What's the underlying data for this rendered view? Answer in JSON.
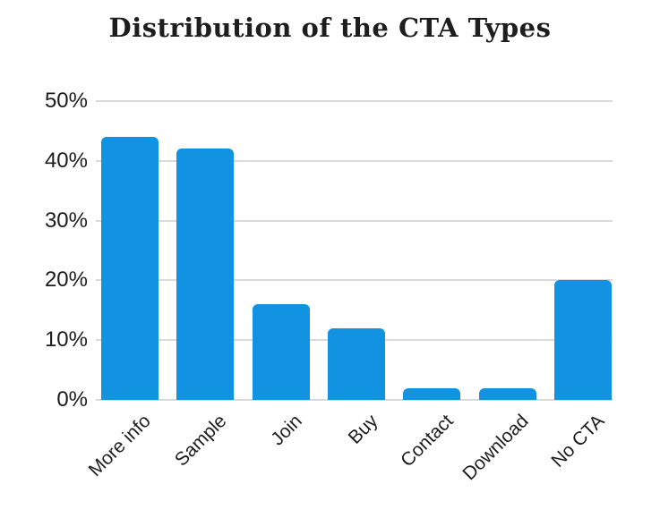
{
  "colors": {
    "background": "#ffffff",
    "bar": "#1193e2",
    "gridline": "#dadada",
    "text": "#1c1c1c",
    "title_text": "#1e1e1e"
  },
  "chart_data": {
    "type": "bar",
    "title": "Distribution of the CTA Types",
    "categories": [
      "More info",
      "Sample",
      "Join",
      "Buy",
      "Contact",
      "Download",
      "No CTA"
    ],
    "values": [
      44,
      42,
      16,
      12,
      2,
      2,
      20
    ],
    "xlabel": "",
    "ylabel": "",
    "ylim": [
      0,
      50
    ],
    "yticks": [
      0,
      10,
      20,
      30,
      40,
      50
    ],
    "ytick_suffix": "%",
    "grid": true,
    "legend": "none",
    "bar_color": "#1193e2",
    "x_label_rotation_deg": -45
  }
}
